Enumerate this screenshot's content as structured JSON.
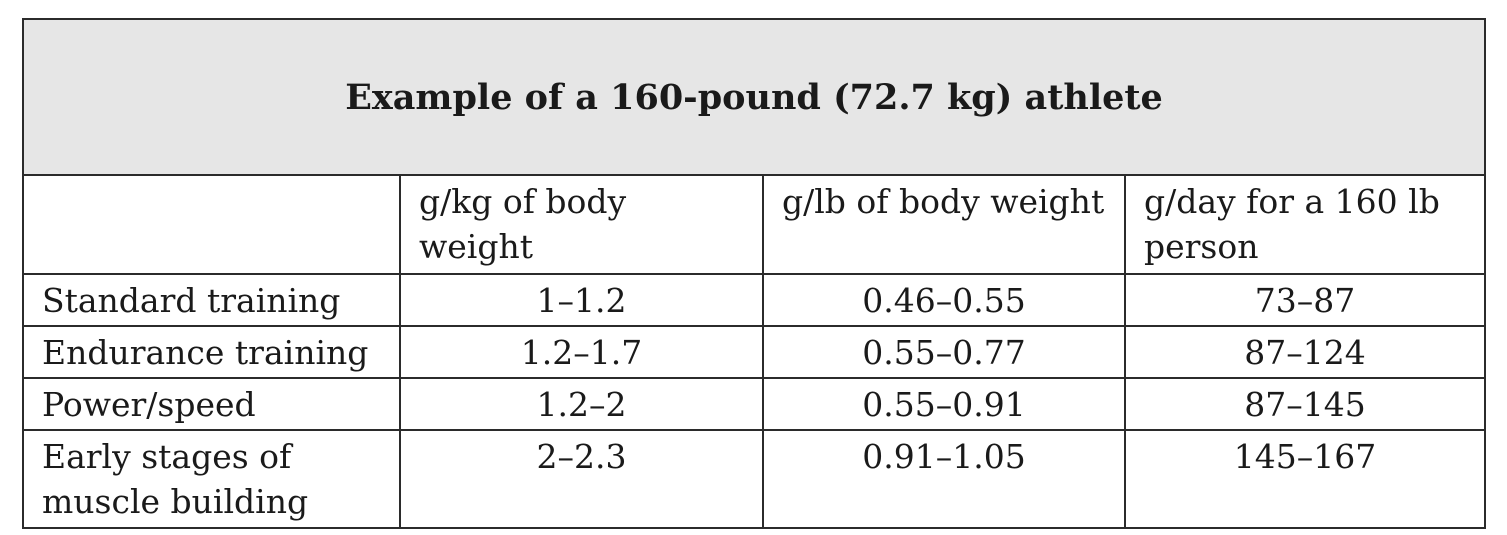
{
  "title": "Example of a 160-pound (72.7 kg) athlete",
  "headers": [
    "",
    "g/kg of body weight",
    "g/lb of body weight",
    "g/day for a 160 lb person"
  ],
  "rows": [
    {
      "label": "Standard training",
      "g_per_kg": "1–1.2",
      "g_per_lb": "0.46–0.55",
      "g_per_day": "73–87"
    },
    {
      "label": "Endurance training",
      "g_per_kg": "1.2–1.7",
      "g_per_lb": "0.55–0.77",
      "g_per_day": "87–124"
    },
    {
      "label": "Power/speed",
      "g_per_kg": "1.2–2",
      "g_per_lb": "0.55–0.91",
      "g_per_day": "87–145"
    },
    {
      "label": "Early stages of muscle building",
      "g_per_kg": "2–2.3",
      "g_per_lb": "0.91–1.05",
      "g_per_day": "145–167"
    }
  ]
}
